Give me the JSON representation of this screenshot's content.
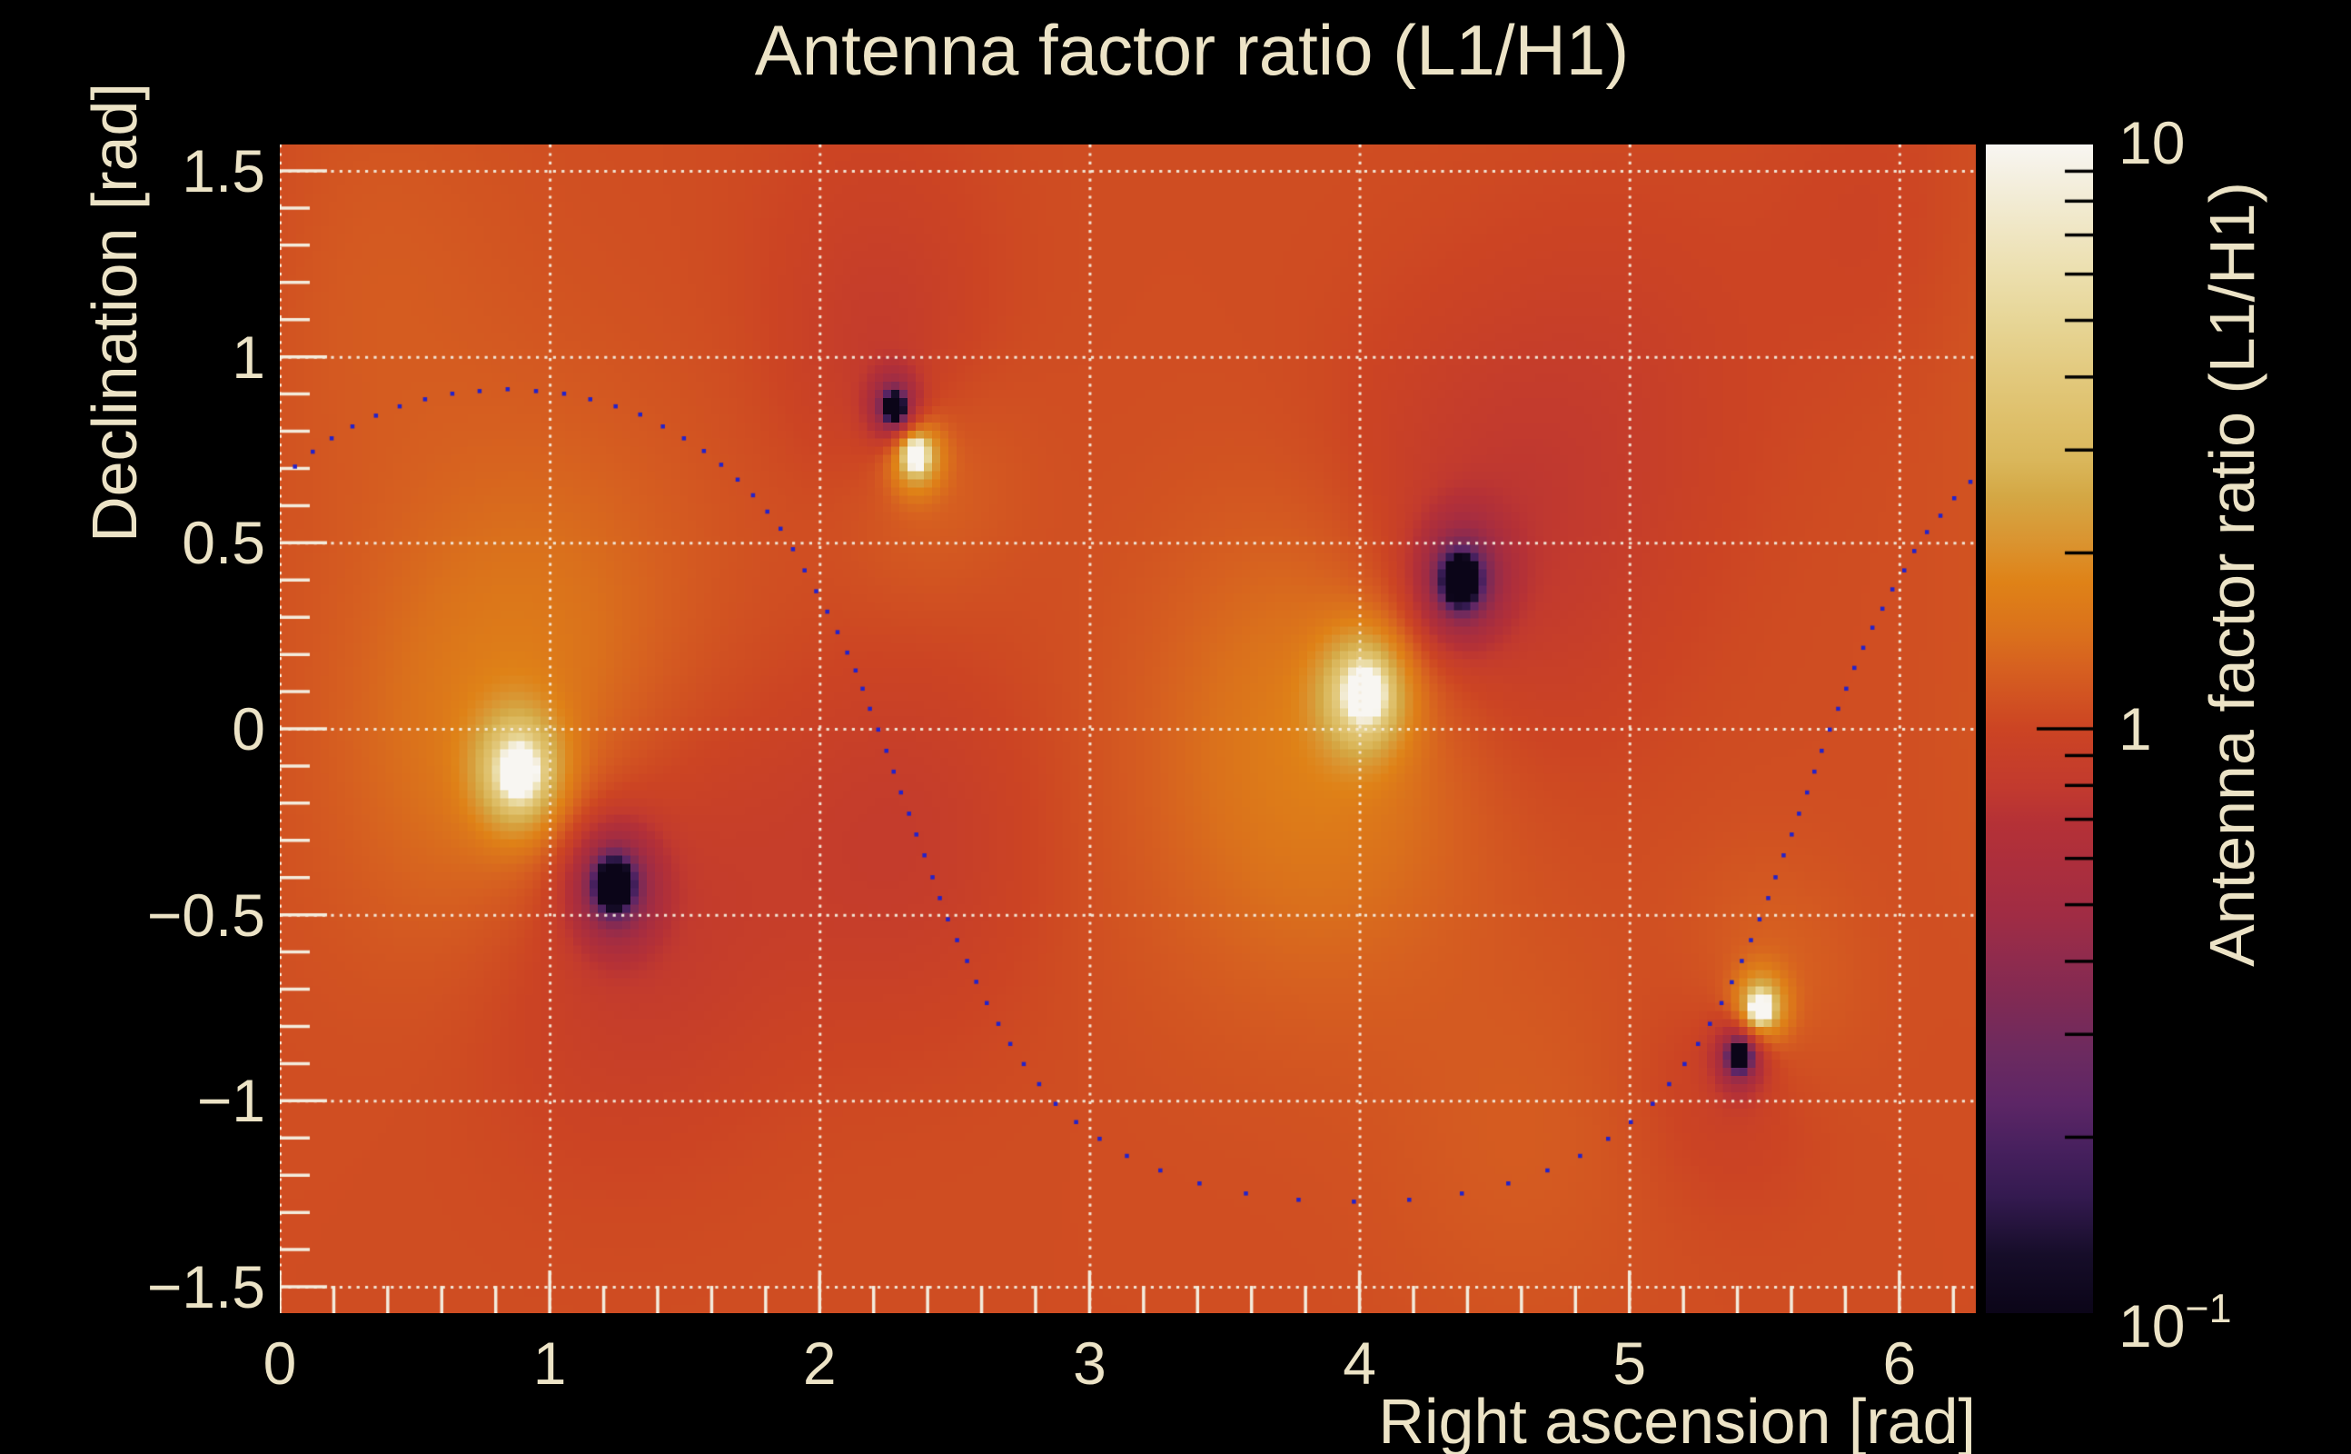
{
  "title": "Antenna factor ratio (L1/H1)",
  "axes": {
    "x": {
      "label": "Right ascension [rad]",
      "tick_labels": [
        "0",
        "1",
        "2",
        "3",
        "4",
        "5",
        "6"
      ],
      "tick_values": [
        0,
        1,
        2,
        3,
        4,
        5,
        6
      ]
    },
    "y": {
      "label": "Declination [rad]",
      "tick_labels": [
        "1.5",
        "1",
        "0.5",
        "0",
        "−0.5",
        "−1",
        "−1.5"
      ],
      "tick_values": [
        1.5,
        1,
        0.5,
        0,
        -0.5,
        -1,
        -1.5
      ]
    },
    "z": {
      "label": "Antenna factor ratio (L1/H1)",
      "top_label": "10",
      "mid_label": "1",
      "bottom_label_base": "10",
      "bottom_label_exp": "−1"
    }
  },
  "colors": {
    "background": "#000000",
    "text": "#ece3c6",
    "tick_and_grid": "#f3ecdd",
    "track_dots": "#2222cb",
    "colorbar_ticks": "#000000"
  },
  "chart_data": {
    "type": "heatmap",
    "title": "Antenna factor ratio (L1/H1)",
    "xlabel": "Right ascension [rad]",
    "ylabel": "Declination [rad]",
    "zlabel": "Antenna factor ratio (L1/H1)",
    "x_range": [
      0,
      6.2832
    ],
    "y_range": [
      -1.5708,
      1.5708
    ],
    "z_range": [
      0.1,
      10
    ],
    "z_scale": "log10",
    "grid": "dotted",
    "bins": [
      208,
      143
    ],
    "base_log10": 0.035,
    "features_note": "poles (bright, L1/H1 large) and zeros (dark, L1/H1 small) of the antenna factor ratio, positions in [rad]",
    "spots": [
      {
        "ra": 0.885,
        "dec": -0.115,
        "sign": 1,
        "size": "big"
      },
      {
        "ra": 1.238,
        "dec": -0.419,
        "sign": -1,
        "size": "big"
      },
      {
        "ra": 2.277,
        "dec": 0.864,
        "sign": -1,
        "size": "small"
      },
      {
        "ra": 2.358,
        "dec": 0.735,
        "sign": 1,
        "size": "small"
      },
      {
        "ra": 4.017,
        "dec": 0.095,
        "sign": 1,
        "size": "big"
      },
      {
        "ra": 4.375,
        "dec": 0.399,
        "sign": -1,
        "size": "big"
      },
      {
        "ra": 5.486,
        "dec": -0.749,
        "sign": 1,
        "size": "small"
      },
      {
        "ra": 5.409,
        "dec": -0.881,
        "sign": -1,
        "size": "small"
      }
    ],
    "profiles": {
      "big": [
        {
          "a": 1.7,
          "s": 0.055
        },
        {
          "a": 0.55,
          "s": 0.16
        },
        {
          "a": 0.2,
          "s": 0.58
        }
      ],
      "small": [
        {
          "a": 1.7,
          "s": 0.032
        },
        {
          "a": 0.5,
          "s": 0.095
        },
        {
          "a": 0.17,
          "s": 0.33
        }
      ]
    },
    "shading": [
      {
        "ra": 2.3,
        "dec": -0.3,
        "a": -0.11,
        "s": 0.5
      },
      {
        "ra": 1.0,
        "dec": 0.3,
        "a": 0.08,
        "s": 0.65
      },
      {
        "ra": 3.7,
        "dec": -0.2,
        "a": 0.08,
        "s": 0.6
      },
      {
        "ra": 4.95,
        "dec": 0.9,
        "a": -0.07,
        "s": 0.55
      },
      {
        "ra": 5.95,
        "dec": 1.35,
        "a": -0.05,
        "s": 0.45
      },
      {
        "ra": 2.2,
        "dec": 1.25,
        "a": -0.06,
        "s": 0.45
      },
      {
        "ra": 4.6,
        "dec": -1.1,
        "a": 0.05,
        "s": 0.5
      },
      {
        "ra": 0.3,
        "dec": 1.2,
        "a": 0.05,
        "s": 0.55
      }
    ],
    "track_points": [
      [
        0.056,
        0.705
      ],
      [
        0.122,
        0.745
      ],
      [
        0.192,
        0.781
      ],
      [
        0.269,
        0.813
      ],
      [
        0.356,
        0.842
      ],
      [
        0.444,
        0.867
      ],
      [
        0.538,
        0.886
      ],
      [
        0.639,
        0.901
      ],
      [
        0.74,
        0.908
      ],
      [
        0.844,
        0.913
      ],
      [
        0.949,
        0.908
      ],
      [
        1.053,
        0.901
      ],
      [
        1.15,
        0.886
      ],
      [
        1.244,
        0.867
      ],
      [
        1.335,
        0.845
      ],
      [
        1.419,
        0.813
      ],
      [
        1.497,
        0.781
      ],
      [
        1.571,
        0.747
      ],
      [
        1.635,
        0.71
      ],
      [
        1.696,
        0.67
      ],
      [
        1.753,
        0.628
      ],
      [
        1.806,
        0.584
      ],
      [
        1.855,
        0.538
      ],
      [
        1.901,
        0.483
      ],
      [
        1.944,
        0.426
      ],
      [
        1.987,
        0.37
      ],
      [
        2.028,
        0.315
      ],
      [
        2.066,
        0.26
      ],
      [
        2.102,
        0.205
      ],
      [
        2.133,
        0.157
      ],
      [
        2.159,
        0.108
      ],
      [
        2.186,
        0.054
      ],
      [
        2.217,
        -0.002
      ],
      [
        2.247,
        -0.059
      ],
      [
        2.274,
        -0.115
      ],
      [
        2.301,
        -0.171
      ],
      [
        2.331,
        -0.228
      ],
      [
        2.358,
        -0.284
      ],
      [
        2.388,
        -0.34
      ],
      [
        2.418,
        -0.399
      ],
      [
        2.445,
        -0.455
      ],
      [
        2.475,
        -0.512
      ],
      [
        2.509,
        -0.568
      ],
      [
        2.546,
        -0.624
      ],
      [
        2.58,
        -0.68
      ],
      [
        2.619,
        -0.737
      ],
      [
        2.662,
        -0.793
      ],
      [
        2.706,
        -0.847
      ],
      [
        2.756,
        -0.901
      ],
      [
        2.813,
        -0.955
      ],
      [
        2.874,
        -1.008
      ],
      [
        2.95,
        -1.057
      ],
      [
        3.037,
        -1.102
      ],
      [
        3.138,
        -1.148
      ],
      [
        3.262,
        -1.187
      ],
      [
        3.407,
        -1.222
      ],
      [
        3.579,
        -1.249
      ],
      [
        3.774,
        -1.266
      ],
      [
        3.979,
        -1.271
      ],
      [
        4.184,
        -1.266
      ],
      [
        4.379,
        -1.249
      ],
      [
        4.551,
        -1.222
      ],
      [
        4.696,
        -1.187
      ],
      [
        4.817,
        -1.148
      ],
      [
        4.921,
        -1.102
      ],
      [
        5.005,
        -1.057
      ],
      [
        5.086,
        -1.008
      ],
      [
        5.147,
        -0.955
      ],
      [
        5.204,
        -0.901
      ],
      [
        5.254,
        -0.847
      ],
      [
        5.298,
        -0.793
      ],
      [
        5.341,
        -0.737
      ],
      [
        5.379,
        -0.681
      ],
      [
        5.416,
        -0.624
      ],
      [
        5.45,
        -0.568
      ],
      [
        5.482,
        -0.512
      ],
      [
        5.514,
        -0.455
      ],
      [
        5.541,
        -0.399
      ],
      [
        5.571,
        -0.34
      ],
      [
        5.601,
        -0.284
      ],
      [
        5.628,
        -0.228
      ],
      [
        5.658,
        -0.171
      ],
      [
        5.685,
        -0.115
      ],
      [
        5.712,
        -0.059
      ],
      [
        5.742,
        -0.002
      ],
      [
        5.773,
        0.054
      ],
      [
        5.803,
        0.108
      ],
      [
        5.833,
        0.164
      ],
      [
        5.866,
        0.218
      ],
      [
        5.9,
        0.272
      ],
      [
        5.937,
        0.323
      ],
      [
        5.974,
        0.375
      ],
      [
        6.018,
        0.426
      ],
      [
        6.055,
        0.478
      ],
      [
        6.102,
        0.529
      ],
      [
        6.152,
        0.573
      ],
      [
        6.203,
        0.62
      ],
      [
        6.263,
        0.664
      ]
    ],
    "colormap": [
      [
        0.0,
        "#0b0518"
      ],
      [
        0.05,
        "#160d29"
      ],
      [
        0.1,
        "#341a50"
      ],
      [
        0.14,
        "#47205e"
      ],
      [
        0.18,
        "#5d2666"
      ],
      [
        0.22,
        "#6b2a60"
      ],
      [
        0.27,
        "#812a53"
      ],
      [
        0.3,
        "#8e2b4e"
      ],
      [
        0.34,
        "#a02c44"
      ],
      [
        0.38,
        "#ab2e3d"
      ],
      [
        0.42,
        "#b53136"
      ],
      [
        0.45,
        "#c23a2e"
      ],
      [
        0.5,
        "#cc4423"
      ],
      [
        0.55,
        "#d65f20"
      ],
      [
        0.58,
        "#da701c"
      ],
      [
        0.625,
        "#df8217"
      ],
      [
        0.66,
        "#da9430"
      ],
      [
        0.7,
        "#d4a845"
      ],
      [
        0.73,
        "#dab75b"
      ],
      [
        0.77,
        "#dfc16d"
      ],
      [
        0.81,
        "#e3cb81"
      ],
      [
        0.85,
        "#e7d697"
      ],
      [
        0.89,
        "#ecdfae"
      ],
      [
        0.93,
        "#f0e7c6"
      ],
      [
        0.97,
        "#f4efdf"
      ],
      [
        1.0,
        "#f8f6f2"
      ]
    ],
    "legend_position": "right-colorbar"
  }
}
